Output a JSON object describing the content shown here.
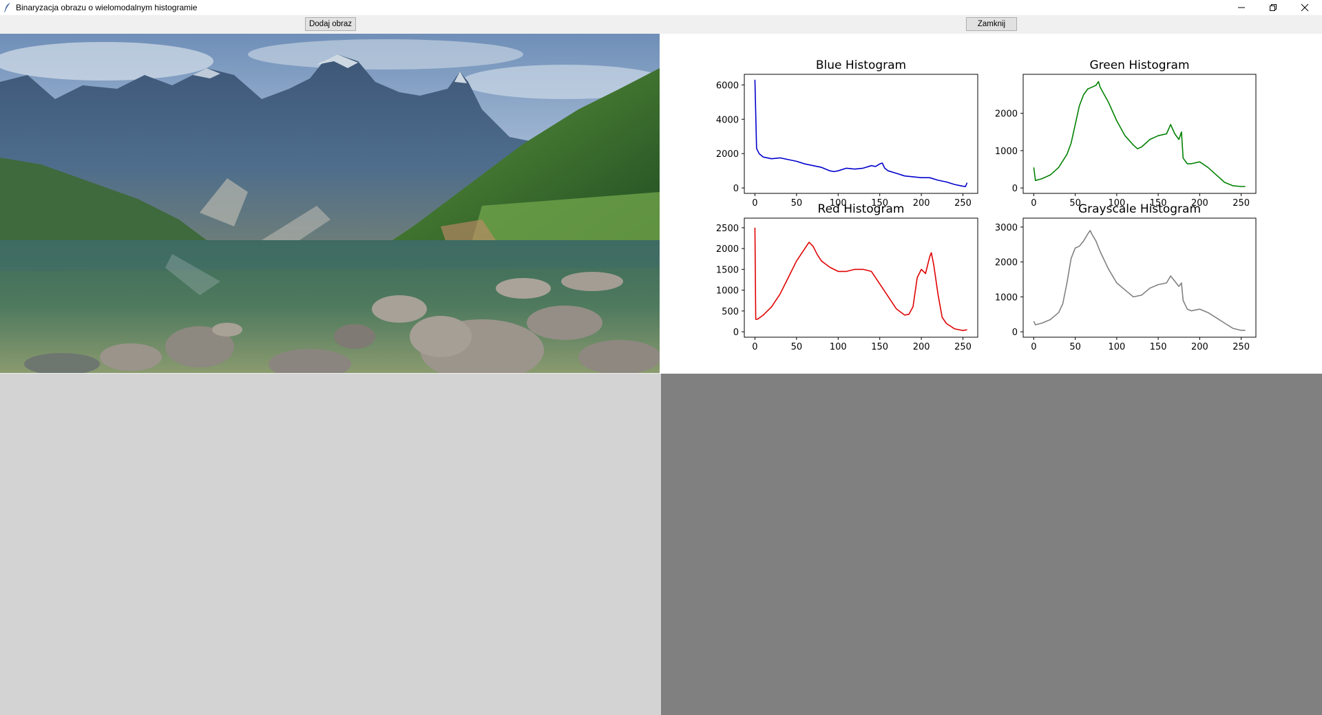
{
  "window": {
    "title": "Binaryzacja obrazu o wielomodalnym histogramie",
    "controls": [
      "minimize-icon",
      "restore-icon",
      "close-icon"
    ]
  },
  "toolbar": {
    "add_image_label": "Dodaj obraz",
    "close_label": "Zamknij"
  },
  "image": {
    "description_icon": "mountain-lake-photo"
  },
  "panels": {
    "bottom_left_color": "#d3d3d3",
    "bottom_right_color": "#808080"
  },
  "chart_data": [
    {
      "type": "line",
      "title": "Blue Histogram",
      "color": "#0000cc",
      "xlim": [
        0,
        255
      ],
      "ylim": [
        0,
        6300
      ],
      "xticks": [
        0,
        50,
        100,
        150,
        200,
        250
      ],
      "yticks": [
        0,
        2000,
        4000,
        6000
      ],
      "x": [
        0,
        2,
        5,
        10,
        20,
        30,
        40,
        50,
        60,
        70,
        80,
        90,
        95,
        100,
        110,
        120,
        130,
        140,
        145,
        150,
        153,
        156,
        160,
        170,
        180,
        190,
        200,
        210,
        220,
        230,
        240,
        250,
        253,
        255
      ],
      "y": [
        6300,
        2300,
        2000,
        1800,
        1700,
        1750,
        1650,
        1550,
        1400,
        1300,
        1200,
        1000,
        950,
        1000,
        1150,
        1100,
        1150,
        1300,
        1250,
        1400,
        1450,
        1150,
        1000,
        850,
        700,
        650,
        600,
        600,
        450,
        350,
        200,
        100,
        80,
        300
      ]
    },
    {
      "type": "line",
      "title": "Green Histogram",
      "color": "#008000",
      "xlim": [
        0,
        255
      ],
      "ylim": [
        0,
        2900
      ],
      "xticks": [
        0,
        50,
        100,
        150,
        200,
        250
      ],
      "yticks": [
        0,
        1000,
        2000
      ],
      "x": [
        0,
        2,
        10,
        20,
        30,
        40,
        45,
        50,
        55,
        60,
        65,
        70,
        75,
        78,
        80,
        85,
        90,
        100,
        110,
        120,
        125,
        130,
        140,
        150,
        160,
        165,
        170,
        175,
        178,
        180,
        185,
        190,
        200,
        210,
        220,
        230,
        240,
        250,
        255
      ],
      "y": [
        550,
        200,
        250,
        350,
        550,
        900,
        1200,
        1700,
        2200,
        2500,
        2650,
        2700,
        2750,
        2850,
        2700,
        2500,
        2300,
        1800,
        1400,
        1150,
        1050,
        1100,
        1300,
        1400,
        1450,
        1700,
        1450,
        1300,
        1500,
        800,
        650,
        650,
        700,
        550,
        350,
        150,
        60,
        40,
        40
      ]
    },
    {
      "type": "line",
      "title": "Red Histogram",
      "color": "#e00000",
      "xlim": [
        0,
        255
      ],
      "ylim": [
        0,
        2600
      ],
      "xticks": [
        0,
        50,
        100,
        150,
        200,
        250
      ],
      "yticks": [
        0,
        500,
        1000,
        1500,
        2000,
        2500
      ],
      "x": [
        0,
        1,
        3,
        10,
        20,
        30,
        40,
        50,
        60,
        65,
        70,
        75,
        80,
        90,
        100,
        110,
        120,
        130,
        140,
        150,
        160,
        170,
        180,
        185,
        190,
        195,
        200,
        205,
        210,
        212,
        215,
        220,
        225,
        230,
        240,
        250,
        255
      ],
      "y": [
        2500,
        300,
        300,
        400,
        600,
        900,
        1300,
        1700,
        2000,
        2150,
        2050,
        1850,
        1700,
        1550,
        1450,
        1450,
        1500,
        1500,
        1450,
        1150,
        850,
        550,
        400,
        420,
        600,
        1300,
        1500,
        1400,
        1800,
        1900,
        1600,
        900,
        350,
        200,
        70,
        30,
        50
      ]
    },
    {
      "type": "line",
      "title": "Grayscale Histogram",
      "color": "#808080",
      "xlim": [
        0,
        255
      ],
      "ylim": [
        0,
        3100
      ],
      "xticks": [
        0,
        50,
        100,
        150,
        200,
        250
      ],
      "yticks": [
        0,
        1000,
        2000,
        3000
      ],
      "x": [
        0,
        2,
        10,
        20,
        30,
        35,
        40,
        45,
        50,
        55,
        60,
        65,
        68,
        70,
        75,
        80,
        90,
        100,
        110,
        120,
        130,
        140,
        150,
        160,
        165,
        170,
        175,
        178,
        180,
        185,
        190,
        200,
        210,
        220,
        230,
        240,
        250,
        255
      ],
      "y": [
        300,
        200,
        250,
        350,
        550,
        800,
        1400,
        2100,
        2400,
        2450,
        2600,
        2800,
        2900,
        2800,
        2600,
        2300,
        1800,
        1400,
        1200,
        1000,
        1050,
        1250,
        1350,
        1400,
        1600,
        1450,
        1300,
        1400,
        900,
        650,
        600,
        650,
        550,
        400,
        250,
        100,
        40,
        40
      ]
    }
  ]
}
